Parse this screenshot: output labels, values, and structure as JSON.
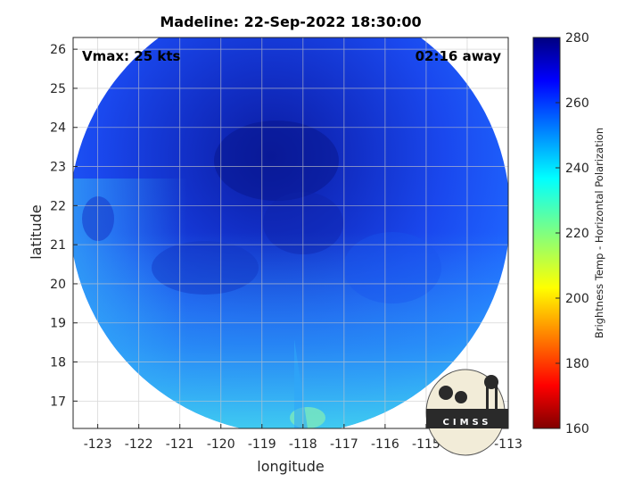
{
  "figure": {
    "title": "Madeline: 22-Sep-2022 18:30:00",
    "vmax_label": "Vmax: 25 kts",
    "time_label": "02:16 away",
    "logo_text": "CIMSS"
  },
  "axes": {
    "xlabel": "longitude",
    "ylabel": "latitude",
    "xlim": [
      -123.6,
      -113
    ],
    "ylim": [
      16.3,
      26.3
    ],
    "xticks": [
      -123,
      -122,
      -121,
      -120,
      -119,
      -118,
      -117,
      -116,
      -115,
      -114,
      -113
    ],
    "yticks": [
      17,
      18,
      19,
      20,
      21,
      22,
      23,
      24,
      25,
      26
    ],
    "grid": true
  },
  "colorbar": {
    "label": "Brightness Temp - Horizontal Polarization",
    "range": [
      160,
      280
    ],
    "ticks": [
      160,
      180,
      200,
      220,
      240,
      260,
      280
    ],
    "colormap": "jet"
  },
  "chart_data": {
    "type": "heatmap",
    "title": "Madeline: 22-Sep-2022 18:30:00",
    "xlabel": "longitude",
    "ylabel": "latitude",
    "center": {
      "lon": -118.2,
      "lat": 21.4
    },
    "values_range": [
      230,
      270
    ],
    "colors": {
      "cold_core": "#0a1aa8",
      "mid": "#1a4dff",
      "warm_edge": "#3ec8f0",
      "hot_spot": "#7ee8c0"
    }
  }
}
